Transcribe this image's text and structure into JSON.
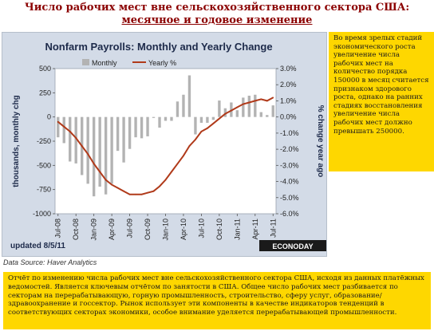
{
  "slide": {
    "title_line1": "Число рабочих мест вне сельскохозяйственного сектора США:",
    "title_line2": "месячное и годовое изменение",
    "side_note": "Во время зрелых стадий экономического роста увеличение числа рабочих мест на количество порядка 150000 в месяц считается признаком здорового роста, однако на ранних стадиях восстановления увеличение числа рабочих мест должно превышать 250000.",
    "source": "Data Source: Haver Analytics",
    "bottom_note": "Отчёт по изменению числа рабочих мест вне сельскохозяйственного сектора США, исходя из данных платёжных ведомостей. Является ключевым отчётом по занятости в США. Общее число рабочих мест разбивается по секторам на перерабатывающую, горную промышленность, строительство, сферу услуг, образование/здравоохранение и госсектор. Рынок использует эти компоненты в качестве индикаторов тенденций в соответствующих секторах экономики, особое внимание уделяется перерабатывающей промышленности."
  },
  "colors": {
    "title": "#8b0000",
    "note_background": "#fed700",
    "chart_panel": "#d3dbe7",
    "plot_background": "#ffffff",
    "bars": "#b3b3b3",
    "line": "#b03a1a"
  },
  "chart_data": {
    "type": "bar",
    "title": "Nonfarm Payrolls: Monthly and Yearly Change",
    "ylabel_left": "thousands, monthly chg",
    "ylabel_right": "% change year ago",
    "ylim_left": [
      -1000,
      500
    ],
    "ylim_right": [
      -6.0,
      3.0
    ],
    "left_ticks": [
      "500",
      "250",
      "0",
      "-250",
      "-500",
      "-750",
      "-1000"
    ],
    "right_ticks": [
      "3.0%",
      "2.0%",
      "1.0%",
      "0.0%",
      "-1.0%",
      "-2.0%",
      "-3.0%",
      "-4.0%",
      "-5.0%",
      "-6.0%"
    ],
    "x_tick_labels": [
      "Jul-08",
      "Oct-08",
      "Jan-09",
      "Apr-09",
      "Jul-09",
      "Oct-09",
      "Jan-10",
      "Apr-10",
      "Jul-10",
      "Oct-10",
      "Jan-11",
      "Apr-11",
      "Jul-11"
    ],
    "x": [
      "Jul-08",
      "Aug-08",
      "Sep-08",
      "Oct-08",
      "Nov-08",
      "Dec-08",
      "Jan-09",
      "Feb-09",
      "Mar-09",
      "Apr-09",
      "May-09",
      "Jun-09",
      "Jul-09",
      "Aug-09",
      "Sep-09",
      "Oct-09",
      "Nov-09",
      "Dec-09",
      "Jan-10",
      "Feb-10",
      "Mar-10",
      "Apr-10",
      "May-10",
      "Jun-10",
      "Jul-10",
      "Aug-10",
      "Sep-10",
      "Oct-10",
      "Nov-10",
      "Dec-10",
      "Jan-11",
      "Feb-11",
      "Mar-11",
      "Apr-11",
      "May-11",
      "Jun-11",
      "Jul-11"
    ],
    "series": [
      {
        "name": "Monthly",
        "axis": "left",
        "kind": "bar",
        "values": [
          -210,
          -270,
          -460,
          -480,
          -600,
          -690,
          -820,
          -720,
          -800,
          -690,
          -350,
          -470,
          -330,
          -210,
          -220,
          -200,
          -10,
          -110,
          -40,
          -40,
          160,
          230,
          430,
          -180,
          -60,
          -60,
          -30,
          170,
          90,
          150,
          70,
          200,
          220,
          230,
          50,
          20,
          120
        ]
      },
      {
        "name": "Yearly %",
        "axis": "right",
        "kind": "line",
        "values": [
          -0.3,
          -0.6,
          -0.9,
          -1.3,
          -1.8,
          -2.3,
          -2.9,
          -3.4,
          -3.9,
          -4.2,
          -4.4,
          -4.6,
          -4.8,
          -4.8,
          -4.8,
          -4.7,
          -4.6,
          -4.3,
          -3.9,
          -3.4,
          -2.9,
          -2.4,
          -1.8,
          -1.4,
          -0.9,
          -0.7,
          -0.4,
          -0.1,
          0.2,
          0.4,
          0.6,
          0.8,
          0.9,
          1.0,
          1.1,
          1.0,
          1.2
        ]
      }
    ],
    "legend": [
      "Monthly",
      "Yearly %"
    ],
    "legend_placement": "top",
    "updated": "updated 8/5/11",
    "watermark": "ECONODAY"
  }
}
